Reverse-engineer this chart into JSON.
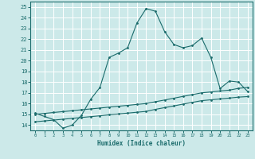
{
  "title": "",
  "xlabel": "Humidex (Indice chaleur)",
  "bg_color": "#cce9e9",
  "grid_color": "#ffffff",
  "line_color": "#1a6b6b",
  "xlim": [
    -0.5,
    23.5
  ],
  "ylim": [
    13.5,
    25.5
  ],
  "xticks": [
    0,
    1,
    2,
    3,
    4,
    5,
    6,
    7,
    8,
    9,
    10,
    11,
    12,
    13,
    14,
    15,
    16,
    17,
    18,
    19,
    20,
    21,
    22,
    23
  ],
  "yticks": [
    14,
    15,
    16,
    17,
    18,
    19,
    20,
    21,
    22,
    23,
    24,
    25
  ],
  "curve1_x": [
    0,
    1,
    2,
    3,
    4,
    5,
    6,
    7,
    8,
    9,
    10,
    11,
    12,
    13,
    14,
    15,
    16,
    17,
    18,
    19,
    20,
    21,
    22,
    23
  ],
  "curve1_y": [
    15.1,
    14.8,
    14.5,
    13.7,
    14.0,
    14.9,
    16.4,
    17.5,
    20.3,
    20.7,
    21.2,
    23.5,
    24.85,
    24.6,
    22.7,
    21.5,
    21.2,
    21.4,
    22.1,
    20.3,
    17.4,
    18.1,
    18.0,
    17.1
  ],
  "curve2_x": [
    0,
    1,
    2,
    3,
    4,
    5,
    6,
    7,
    8,
    9,
    10,
    11,
    12,
    13,
    14,
    15,
    16,
    17,
    18,
    19,
    20,
    21,
    22,
    23
  ],
  "curve2_y": [
    15.0,
    15.08,
    15.17,
    15.25,
    15.33,
    15.42,
    15.5,
    15.58,
    15.67,
    15.75,
    15.83,
    15.92,
    16.0,
    16.17,
    16.33,
    16.5,
    16.67,
    16.83,
    17.0,
    17.08,
    17.17,
    17.25,
    17.42,
    17.5
  ],
  "curve3_x": [
    0,
    1,
    2,
    3,
    4,
    5,
    6,
    7,
    8,
    9,
    10,
    11,
    12,
    13,
    14,
    15,
    16,
    17,
    18,
    19,
    20,
    21,
    22,
    23
  ],
  "curve3_y": [
    14.3,
    14.38,
    14.46,
    14.54,
    14.62,
    14.7,
    14.78,
    14.86,
    14.95,
    15.03,
    15.11,
    15.19,
    15.27,
    15.46,
    15.62,
    15.78,
    15.95,
    16.11,
    16.27,
    16.35,
    16.43,
    16.51,
    16.6,
    16.65
  ]
}
